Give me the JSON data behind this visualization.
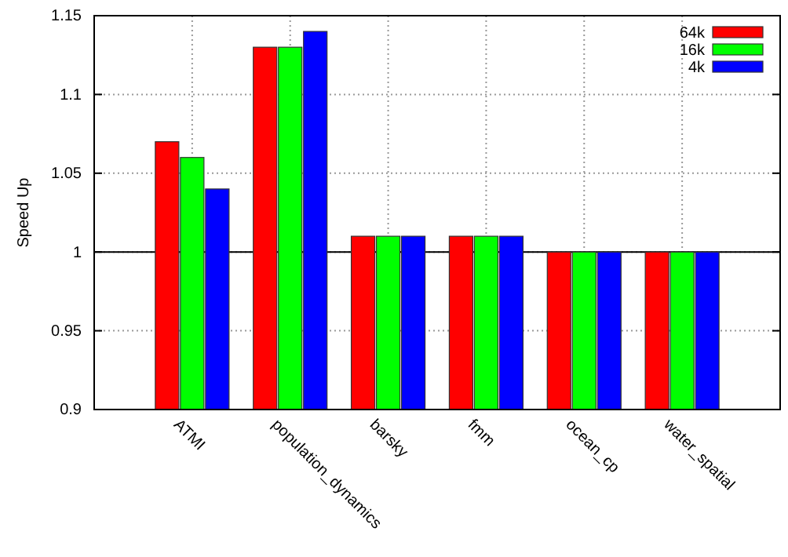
{
  "chart_data": {
    "type": "bar",
    "ylabel": "Speed Up",
    "categories": [
      "ATMI",
      "population_dynamics",
      "barsky",
      "fmm",
      "ocean_cp",
      "water_spatial"
    ],
    "series": [
      {
        "name": "64k",
        "color": "#ff0000",
        "values": [
          1.07,
          1.13,
          1.01,
          1.01,
          1.0,
          1.0
        ]
      },
      {
        "name": "16k",
        "color": "#00ff00",
        "values": [
          1.06,
          1.13,
          1.01,
          1.01,
          1.0,
          1.0
        ]
      },
      {
        "name": "4k",
        "color": "#0000ff",
        "values": [
          1.04,
          1.14,
          1.01,
          1.01,
          1.0,
          1.0
        ]
      }
    ],
    "ylim": [
      0.9,
      1.15
    ],
    "yticks": [
      0.9,
      0.95,
      1,
      1.05,
      1.1,
      1.15
    ],
    "ref_lines": [
      {
        "axis": "y",
        "value": 1
      }
    ],
    "grid": true,
    "legend": "top right"
  }
}
